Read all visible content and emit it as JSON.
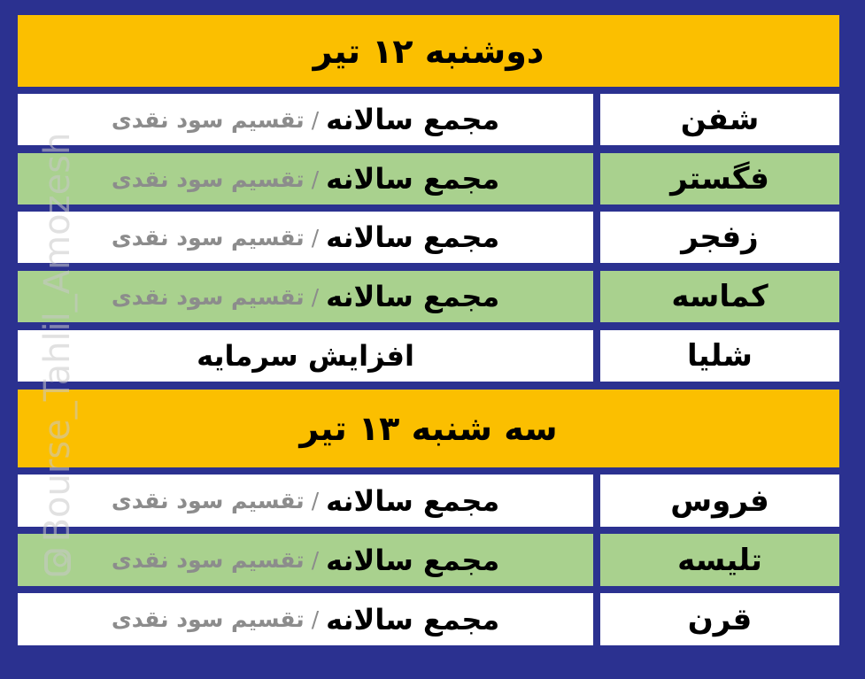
{
  "colors": {
    "background": "#2b3190",
    "header": "#fbbf00",
    "row_alt": "#a9d18e",
    "row": "#ffffff",
    "secondary_text": "#8c8c8c"
  },
  "watermark": {
    "icon": "instagram-icon",
    "text": "Bourse_Tahlil_Amozesh"
  },
  "sections": [
    {
      "title": "دوشنبه ۱۲ تیر",
      "rows": [
        {
          "symbol": "شفن",
          "main": "مجمع سالانه",
          "sep": "/",
          "sub": "تقسیم سود نقدی"
        },
        {
          "symbol": "فگستر",
          "main": "مجمع سالانه",
          "sep": "/",
          "sub": "تقسیم سود نقدی"
        },
        {
          "symbol": "زفجر",
          "main": "مجمع سالانه",
          "sep": "/",
          "sub": "تقسیم سود نقدی"
        },
        {
          "symbol": "کماسه",
          "main": "مجمع سالانه",
          "sep": "/",
          "sub": "تقسیم سود نقدی"
        },
        {
          "symbol": "شلیا",
          "main": "افزایش سرمایه"
        }
      ]
    },
    {
      "title": "سه شنبه ۱۳ تیر",
      "rows": [
        {
          "symbol": "فروس",
          "main": "مجمع سالانه",
          "sep": "/",
          "sub": "تقسیم سود نقدی"
        },
        {
          "symbol": "تلیسه",
          "main": "مجمع سالانه",
          "sep": "/",
          "sub": "تقسیم سود نقدی"
        },
        {
          "symbol": "قرن",
          "main": "مجمع سالانه",
          "sep": "/",
          "sub": "تقسیم سود نقدی"
        }
      ]
    }
  ]
}
